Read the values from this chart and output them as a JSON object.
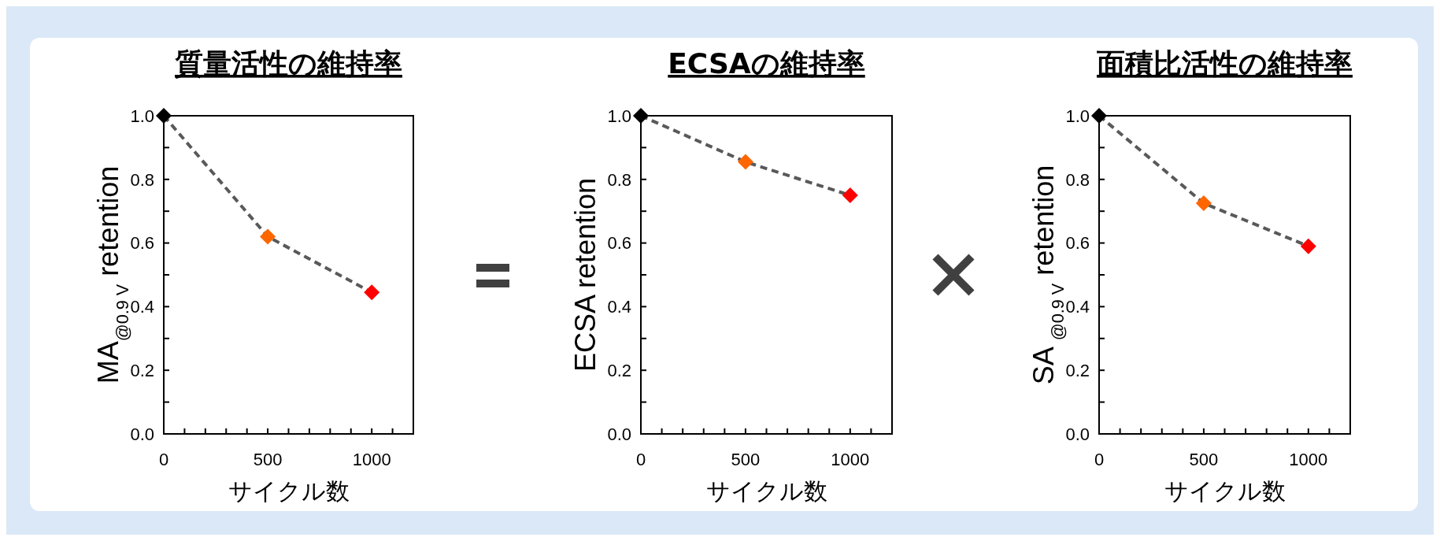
{
  "chart_data": [
    {
      "type": "line",
      "title": "質量活性の維持率",
      "xlabel": "サイクル数",
      "ylabel": "MA$_{@0.9 V}$ retention",
      "x": [
        0,
        500,
        1000
      ],
      "series": [
        {
          "color": "#595959",
          "colors": [
            "#000000",
            "#ff6600",
            "#ff0000"
          ],
          "values": [
            1.0,
            0.62,
            0.445
          ]
        }
      ],
      "xlim": [
        0,
        1200
      ],
      "xticks": [
        0,
        {
          "value": 100,
          "label": null
        },
        {
          "value": 200,
          "label": null
        },
        {
          "value": 300,
          "label": null
        },
        {
          "value": 400,
          "label": null
        },
        500,
        {
          "value": 600,
          "label": null
        },
        {
          "value": 700,
          "label": null
        },
        {
          "value": 800,
          "label": null
        },
        {
          "value": 900,
          "label": null
        },
        1000,
        {
          "value": 1100,
          "label": null
        }
      ],
      "ylim": [
        0,
        1
      ],
      "yticks": [
        {
          "value": 0,
          "label": "0.0"
        },
        {
          "value": 0.1,
          "label": null
        },
        {
          "value": 0.2,
          "label": "0.2"
        },
        {
          "value": 0.3,
          "label": null
        },
        {
          "value": 0.4,
          "label": "0.4"
        },
        {
          "value": 0.5,
          "label": null
        },
        {
          "value": 0.6,
          "label": "0.6"
        },
        {
          "value": 0.7,
          "label": null
        },
        {
          "value": 0.8,
          "label": "0.8"
        },
        {
          "value": 0.9,
          "label": null
        },
        {
          "value": 1,
          "label": "1.0"
        }
      ],
      "marker": "diamond",
      "line_style": "dashed"
    },
    {
      "type": "line",
      "title": "ECSAの維持率",
      "xlabel": "サイクル数",
      "ylabel": "ECSA retention",
      "x": [
        0,
        500,
        1000
      ],
      "series": [
        {
          "color": "#595959",
          "colors": [
            "#000000",
            "#ff6600",
            "#ff0000"
          ],
          "values": [
            1.0,
            0.855,
            0.75
          ]
        }
      ],
      "xlim": [
        0,
        1200
      ],
      "xticks": [
        0,
        {
          "value": 100,
          "label": null
        },
        {
          "value": 200,
          "label": null
        },
        {
          "value": 300,
          "label": null
        },
        {
          "value": 400,
          "label": null
        },
        500,
        {
          "value": 600,
          "label": null
        },
        {
          "value": 700,
          "label": null
        },
        {
          "value": 800,
          "label": null
        },
        {
          "value": 900,
          "label": null
        },
        1000,
        {
          "value": 1100,
          "label": null
        }
      ],
      "ylim": [
        0,
        1
      ],
      "yticks": [
        {
          "value": 0,
          "label": "0.0"
        },
        {
          "value": 0.1,
          "label": null
        },
        {
          "value": 0.2,
          "label": "0.2"
        },
        {
          "value": 0.3,
          "label": null
        },
        {
          "value": 0.4,
          "label": "0.4"
        },
        {
          "value": 0.5,
          "label": null
        },
        {
          "value": 0.6,
          "label": "0.6"
        },
        {
          "value": 0.7,
          "label": null
        },
        {
          "value": 0.8,
          "label": "0.8"
        },
        {
          "value": 0.9,
          "label": null
        },
        {
          "value": 1,
          "label": "1.0"
        }
      ],
      "marker": "diamond",
      "line_style": "dashed"
    },
    {
      "type": "line",
      "title": "面積比活性の維持率",
      "xlabel": "サイクル数",
      "ylabel": "SA $_{@0.9 V}$ retention",
      "x": [
        0,
        500,
        1000
      ],
      "series": [
        {
          "color": "#595959",
          "colors": [
            "#000000",
            "#ff6600",
            "#ff0000"
          ],
          "values": [
            1.0,
            0.725,
            0.59
          ]
        }
      ],
      "xlim": [
        0,
        1200
      ],
      "xticks": [
        0,
        {
          "value": 100,
          "label": null
        },
        {
          "value": 200,
          "label": null
        },
        {
          "value": 300,
          "label": null
        },
        {
          "value": 400,
          "label": null
        },
        500,
        {
          "value": 600,
          "label": null
        },
        {
          "value": 700,
          "label": null
        },
        {
          "value": 800,
          "label": null
        },
        {
          "value": 900,
          "label": null
        },
        1000,
        {
          "value": 1100,
          "label": null
        }
      ],
      "ylim": [
        0,
        1
      ],
      "yticks": [
        {
          "value": 0,
          "label": "0.0"
        },
        {
          "value": 0.1,
          "label": null
        },
        {
          "value": 0.2,
          "label": "0.2"
        },
        {
          "value": 0.3,
          "label": null
        },
        {
          "value": 0.4,
          "label": "0.4"
        },
        {
          "value": 0.5,
          "label": null
        },
        {
          "value": 0.6,
          "label": "0.6"
        },
        {
          "value": 0.7,
          "label": null
        },
        {
          "value": 0.8,
          "label": "0.8"
        },
        {
          "value": 0.9,
          "label": null
        },
        {
          "value": 1,
          "label": "1.0"
        }
      ],
      "marker": "diamond",
      "line_style": "dashed"
    }
  ]
}
